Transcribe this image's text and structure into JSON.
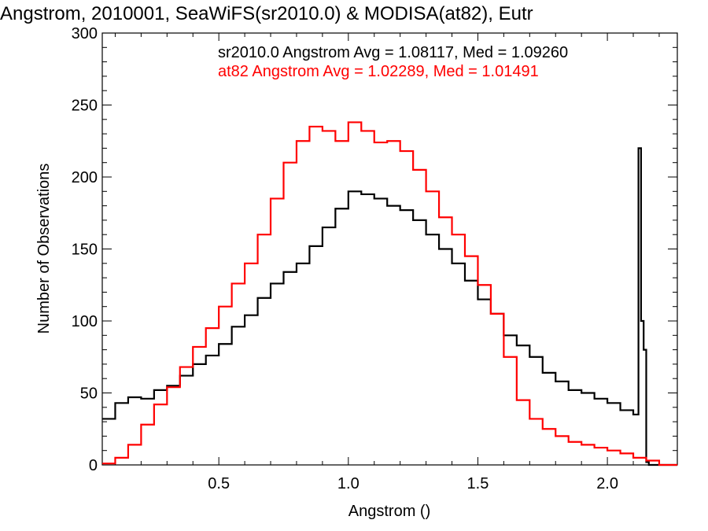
{
  "chart_data": {
    "type": "line",
    "title": "Angstrom, 2010001, SeaWiFS(sr2010.0) & MODISA(at82), Eutr",
    "xlabel": "Angstrom ()",
    "ylabel": "Number of Observations",
    "xlim": [
      0.05,
      2.27
    ],
    "ylim": [
      0,
      300
    ],
    "xticks": [
      0.5,
      1.0,
      1.5,
      2.0
    ],
    "xtick_labels": [
      "0.5",
      "1.0",
      "1.5",
      "2.0"
    ],
    "yticks": [
      0,
      50,
      100,
      150,
      200,
      250,
      300
    ],
    "ytick_labels": [
      "0",
      "50",
      "100",
      "150",
      "200",
      "250",
      "300"
    ],
    "annotations": [
      {
        "text": "sr2010.0 Angstrom Avg = 1.08117, Med = 1.09260",
        "color": "#000000"
      },
      {
        "text": "at82 Angstrom Avg = 1.02289, Med = 1.01491",
        "color": "#ff0000"
      }
    ],
    "series": [
      {
        "color": "#000000",
        "style": "step",
        "x": [
          0.05,
          0.1,
          0.15,
          0.2,
          0.25,
          0.3,
          0.35,
          0.4,
          0.45,
          0.5,
          0.55,
          0.6,
          0.65,
          0.7,
          0.75,
          0.8,
          0.85,
          0.9,
          0.95,
          1.0,
          1.05,
          1.1,
          1.15,
          1.2,
          1.25,
          1.3,
          1.35,
          1.4,
          1.45,
          1.5,
          1.55,
          1.6,
          1.65,
          1.7,
          1.75,
          1.8,
          1.85,
          1.9,
          1.95,
          2.0,
          2.05,
          2.1,
          2.12,
          2.13,
          2.14,
          2.15,
          2.16,
          2.2,
          2.27
        ],
        "y": [
          32,
          43,
          47,
          46,
          52,
          55,
          62,
          70,
          76,
          84,
          96,
          104,
          116,
          126,
          134,
          140,
          152,
          165,
          178,
          190,
          188,
          185,
          180,
          177,
          170,
          160,
          150,
          140,
          128,
          115,
          105,
          90,
          83,
          75,
          64,
          58,
          52,
          50,
          46,
          43,
          38,
          35,
          220,
          100,
          80,
          2,
          0,
          0,
          0
        ]
      },
      {
        "color": "#ff0000",
        "style": "step",
        "x": [
          0.05,
          0.1,
          0.15,
          0.2,
          0.25,
          0.3,
          0.35,
          0.4,
          0.45,
          0.5,
          0.55,
          0.6,
          0.65,
          0.7,
          0.75,
          0.8,
          0.85,
          0.9,
          0.95,
          1.0,
          1.05,
          1.1,
          1.15,
          1.2,
          1.25,
          1.3,
          1.35,
          1.4,
          1.45,
          1.5,
          1.55,
          1.6,
          1.65,
          1.7,
          1.75,
          1.8,
          1.85,
          1.9,
          1.95,
          2.0,
          2.05,
          2.1,
          2.15,
          2.2,
          2.27
        ],
        "y": [
          1,
          5,
          14,
          28,
          42,
          54,
          68,
          82,
          95,
          110,
          126,
          140,
          160,
          185,
          210,
          225,
          235,
          232,
          225,
          238,
          232,
          224,
          225,
          218,
          205,
          190,
          172,
          160,
          145,
          125,
          105,
          75,
          45,
          32,
          25,
          20,
          16,
          14,
          12,
          10,
          8,
          5,
          3,
          0,
          0
        ]
      }
    ]
  }
}
